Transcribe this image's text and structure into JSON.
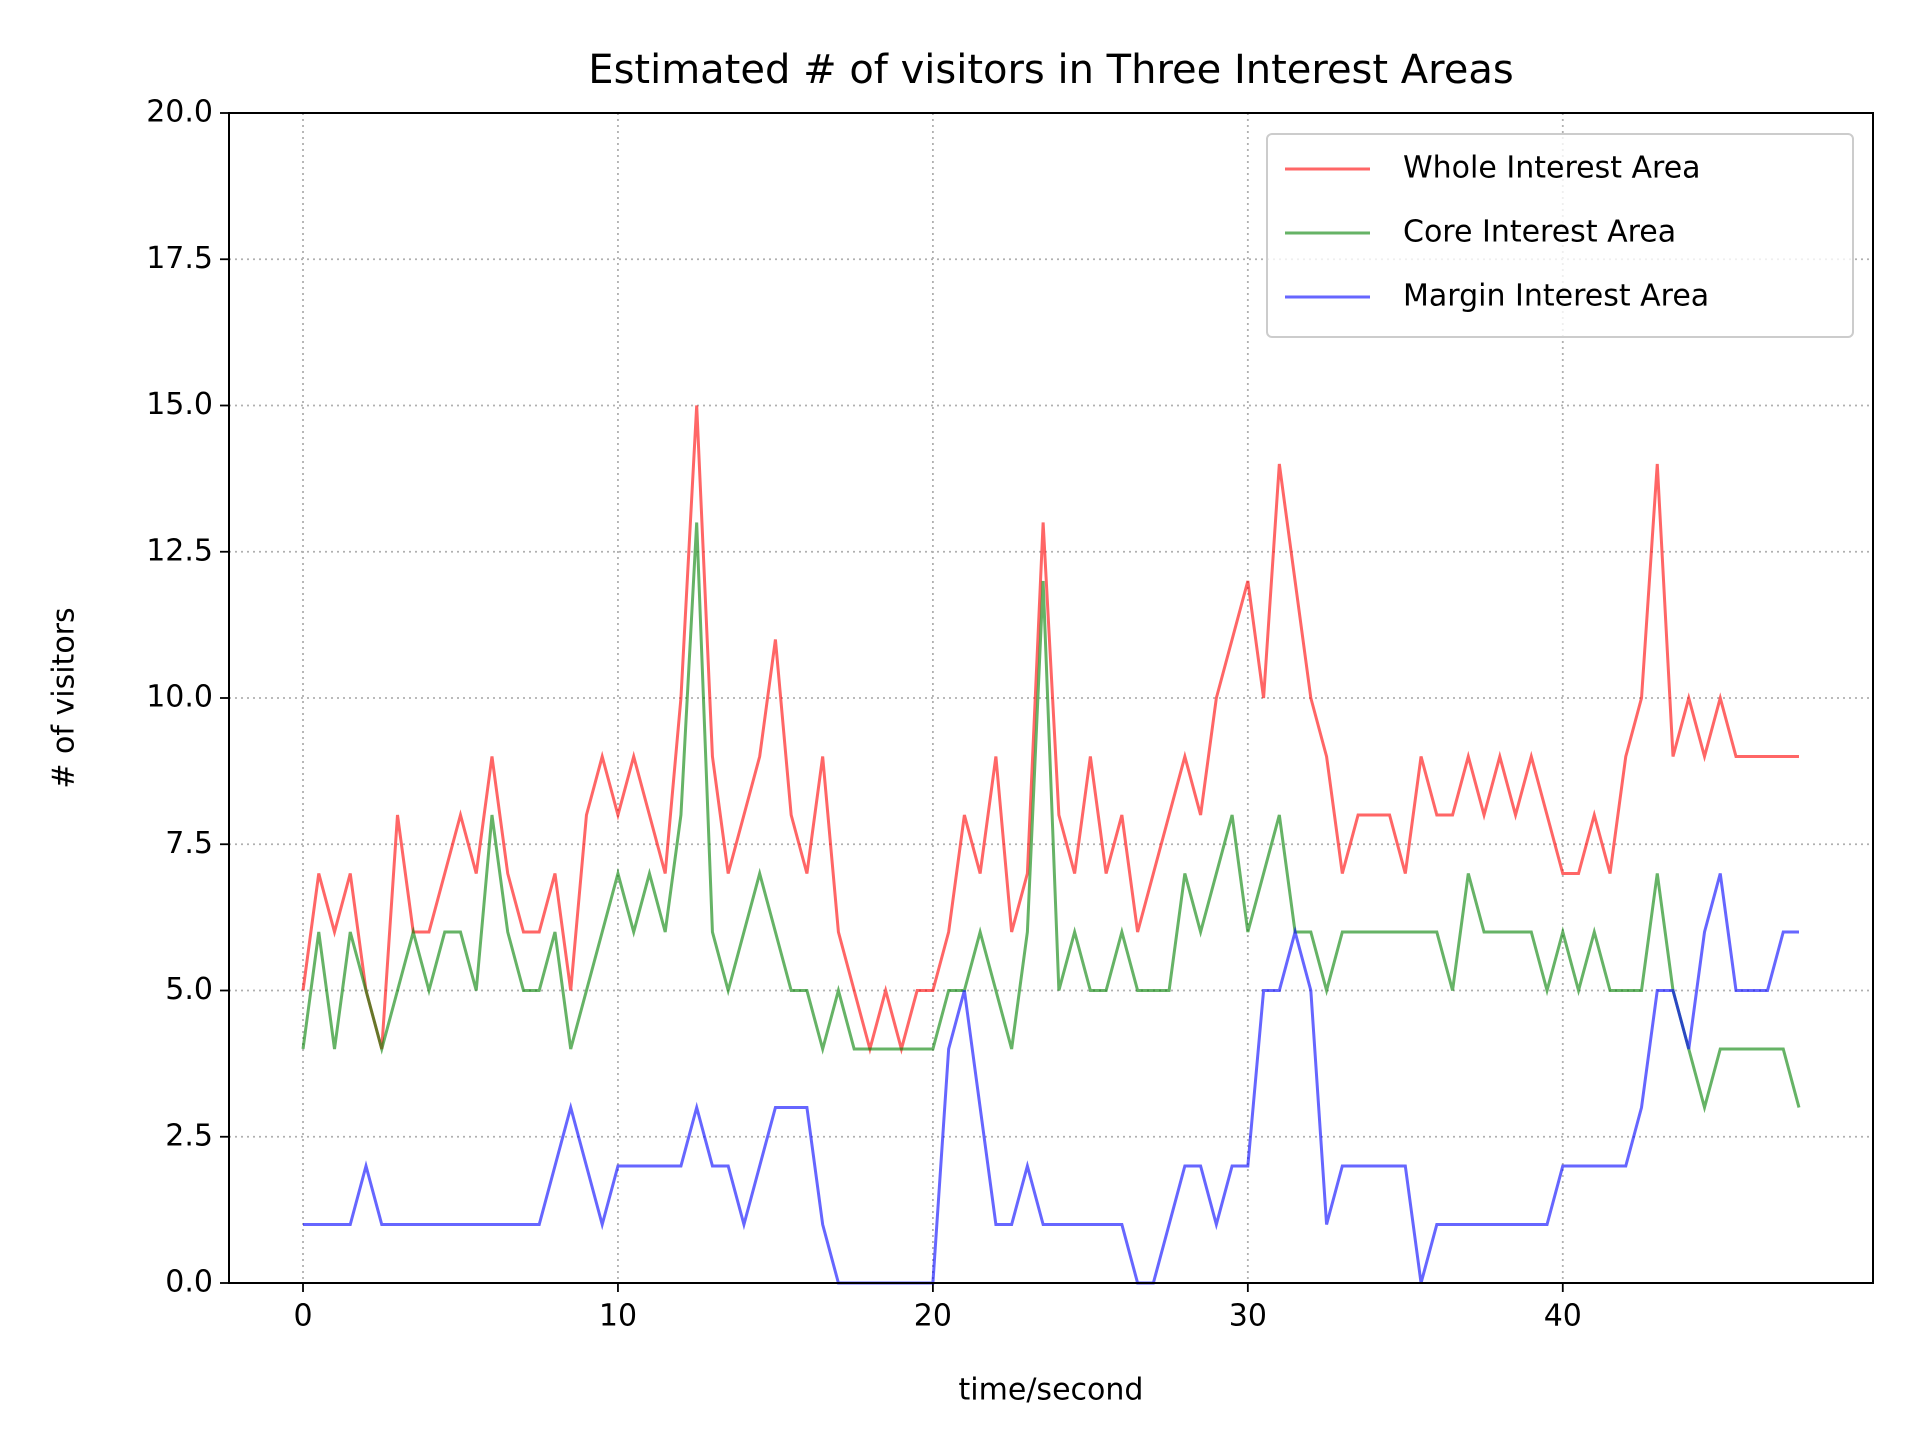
{
  "chart_data": {
    "type": "line",
    "title": "Estimated # of visitors in Three Interest Areas",
    "x_label": "time/second",
    "y_label": "# of visitors",
    "x": [
      0,
      0.5,
      1,
      1.5,
      2,
      2.5,
      3,
      3.5,
      4,
      4.5,
      5,
      5.5,
      6,
      6.5,
      7,
      7.5,
      8,
      8.5,
      9,
      9.5,
      10,
      10.5,
      11,
      11.5,
      12,
      12.5,
      13,
      13.5,
      14,
      14.5,
      15,
      15.5,
      16,
      16.5,
      17,
      17.5,
      18,
      18.5,
      19,
      19.5,
      20,
      20.5,
      21,
      21.5,
      22,
      22.5,
      23,
      23.5,
      24,
      24.5,
      25,
      25.5,
      26,
      26.5,
      27,
      27.5,
      28,
      28.5,
      29,
      29.5,
      30,
      30.5,
      31,
      31.5,
      32,
      32.5,
      33,
      33.5,
      34,
      34.5,
      35,
      35.5,
      36,
      36.5,
      37,
      37.5,
      38,
      38.5,
      39,
      39.5,
      40,
      40.5,
      41,
      41.5,
      42,
      42.5,
      43,
      43.5,
      44,
      44.5,
      45,
      45.5,
      46,
      46.5,
      47,
      47.5
    ],
    "series": [
      {
        "name": "Whole Interest Area",
        "color": "#ff0000",
        "values": [
          5,
          7,
          6,
          7,
          5,
          4,
          8,
          6,
          6,
          7,
          8,
          7,
          9,
          7,
          6,
          6,
          7,
          5,
          8,
          9,
          8,
          9,
          8,
          7,
          10,
          15,
          9,
          7,
          8,
          9,
          11,
          8,
          7,
          9,
          6,
          5,
          4,
          5,
          4,
          5,
          5,
          6,
          8,
          7,
          9,
          6,
          7,
          13,
          8,
          7,
          9,
          7,
          8,
          6,
          7,
          8,
          9,
          8,
          10,
          11,
          12,
          10,
          14,
          12,
          10,
          9,
          7,
          8,
          8,
          8,
          7,
          9,
          8,
          8,
          9,
          8,
          9,
          8,
          9,
          8,
          7,
          7,
          8,
          7,
          9,
          10,
          14,
          9,
          10,
          9,
          10,
          9,
          9,
          9,
          9,
          9
        ]
      },
      {
        "name": "Core Interest Area",
        "color": "#008000",
        "values": [
          4,
          6,
          4,
          6,
          5,
          4,
          5,
          6,
          5,
          6,
          6,
          5,
          8,
          6,
          5,
          5,
          6,
          4,
          5,
          6,
          7,
          6,
          7,
          6,
          8,
          13,
          6,
          5,
          6,
          7,
          6,
          5,
          5,
          4,
          5,
          4,
          4,
          4,
          4,
          4,
          4,
          5,
          5,
          6,
          5,
          4,
          6,
          12,
          5,
          6,
          5,
          5,
          6,
          5,
          5,
          5,
          7,
          6,
          7,
          8,
          6,
          7,
          8,
          6,
          6,
          5,
          6,
          6,
          6,
          6,
          6,
          6,
          6,
          5,
          7,
          6,
          6,
          6,
          6,
          5,
          6,
          5,
          6,
          5,
          5,
          5,
          7,
          5,
          4,
          3,
          4,
          4,
          4,
          4,
          4,
          3
        ]
      },
      {
        "name": "Margin Interest Area",
        "color": "#0000ff",
        "values": [
          1,
          1,
          1,
          1,
          2,
          1,
          1,
          1,
          1,
          1,
          1,
          1,
          1,
          1,
          1,
          1,
          2,
          3,
          2,
          1,
          2,
          2,
          2,
          2,
          2,
          3,
          2,
          2,
          1,
          2,
          3,
          3,
          3,
          1,
          0,
          0,
          0,
          0,
          0,
          0,
          0,
          4,
          5,
          3,
          1,
          1,
          2,
          1,
          1,
          1,
          1,
          1,
          1,
          0,
          0,
          1,
          2,
          2,
          1,
          2,
          2,
          5,
          5,
          6,
          5,
          1,
          2,
          2,
          2,
          2,
          2,
          0,
          1,
          1,
          1,
          1,
          1,
          1,
          1,
          1,
          2,
          2,
          2,
          2,
          2,
          3,
          5,
          5,
          4,
          6,
          7,
          5,
          5,
          5,
          6,
          6
        ]
      }
    ],
    "xlim": [
      -2.35,
      49.85
    ],
    "ylim": [
      0,
      20
    ],
    "xticks": [
      0,
      10,
      20,
      30,
      40
    ],
    "yticks": [
      {
        "value": 0,
        "label": "0.0"
      },
      2.5,
      {
        "value": 5,
        "label": "5.0"
      },
      7.5,
      {
        "value": 10,
        "label": "10.0"
      },
      12.5,
      {
        "value": 15,
        "label": "15.0"
      },
      17.5,
      {
        "value": 20,
        "label": "20.0"
      }
    ],
    "grid": true,
    "legend": "upper right"
  }
}
